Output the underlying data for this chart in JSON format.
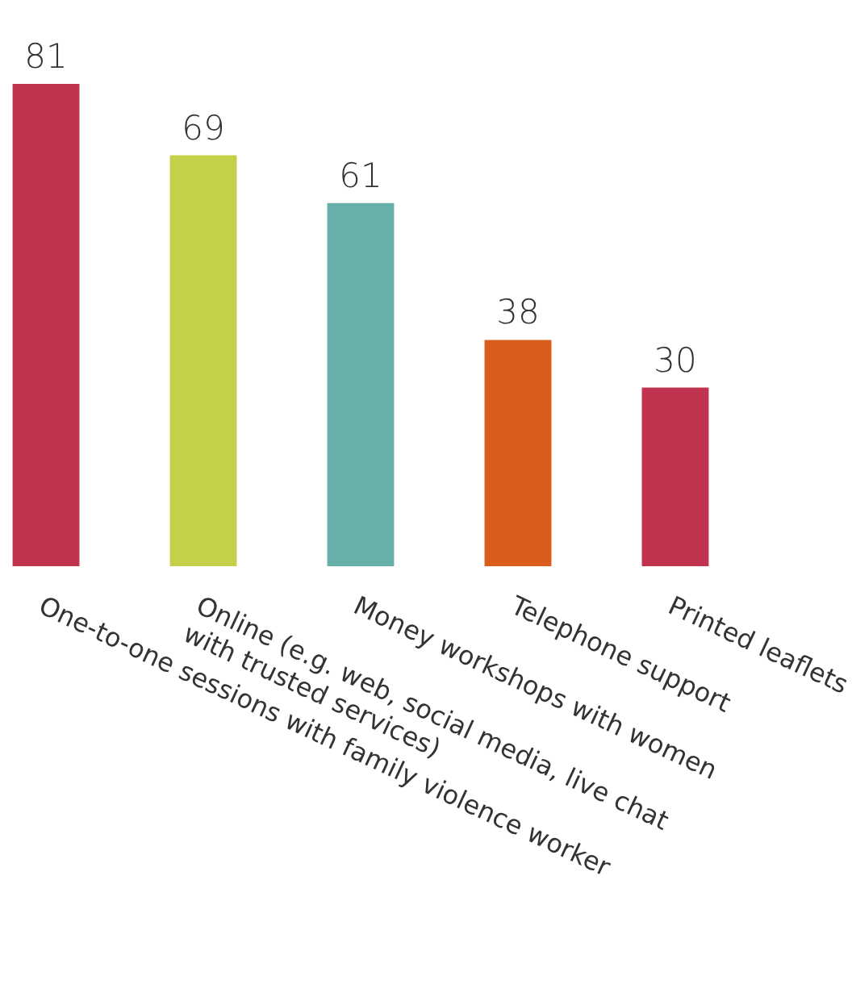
{
  "chart_data": {
    "type": "bar",
    "categories": [
      "One-to-one sessions with family violence worker",
      "Online (e.g. web, social media, live chat with trusted services)",
      "Money workshops with women",
      "Telephone support",
      "Printed leaflets"
    ],
    "values": [
      81,
      69,
      61,
      38,
      30
    ],
    "colors": [
      "#c1334f",
      "#c5d04a",
      "#67afa9",
      "#d95d1d",
      "#c1334f"
    ],
    "data_labels": true
  }
}
